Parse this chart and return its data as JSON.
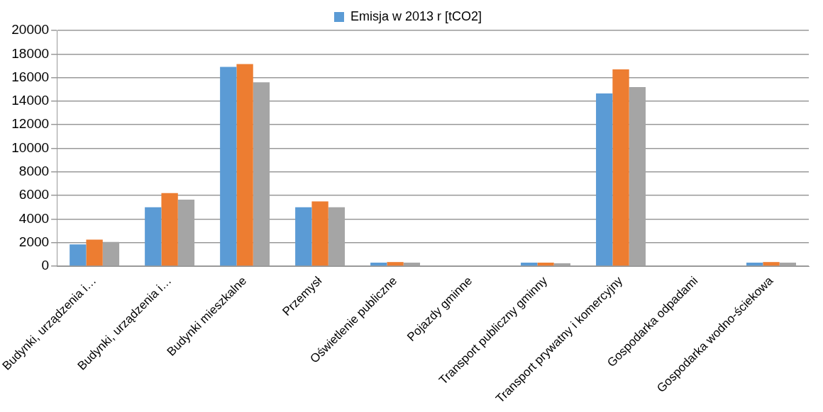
{
  "chart_data": {
    "type": "bar",
    "categories": [
      "Budynki, urządzenia i…",
      "Budynki, urządzenia i…",
      "Budynki mieszkalne",
      "Przemysł",
      "Oświetlenie publiczne",
      "Pojazdy gminne",
      "Transport publiczny gminny",
      "Transport prywatny i komercyjny",
      "Gospodarka odpadami",
      "Gospodarka wodno-ściekowa"
    ],
    "series": [
      {
        "name": "Emisja w 2013 r [tCO2]",
        "color": "#5b9bd5",
        "values": [
          1850,
          5000,
          16900,
          5000,
          300,
          0,
          300,
          14650,
          0,
          300
        ]
      },
      {
        "color": "#ed7d31",
        "values": [
          2250,
          6200,
          17150,
          5500,
          350,
          0,
          300,
          16700,
          0,
          350
        ]
      },
      {
        "color": "#a5a5a5",
        "values": [
          2050,
          5650,
          15600,
          5000,
          300,
          0,
          250,
          15200,
          0,
          300
        ]
      }
    ],
    "ylim": [
      0,
      20000
    ],
    "yticks": [
      0,
      2000,
      4000,
      6000,
      8000,
      10000,
      12000,
      14000,
      16000,
      18000,
      20000
    ],
    "grid": "y",
    "legend": "top"
  }
}
